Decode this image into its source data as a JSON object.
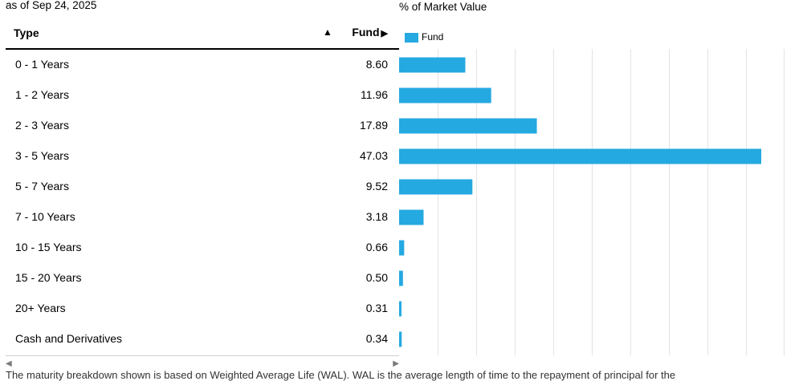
{
  "header": {
    "as_of": "as of Sep 24, 2025",
    "chart_title": "% of Market Value"
  },
  "table": {
    "col_type": "Type",
    "col_fund": "Fund",
    "sort_icon": "sort-ascending-triangle",
    "rows": [
      {
        "type": "0 - 1 Years",
        "value": "8.60"
      },
      {
        "type": "1 - 2 Years",
        "value": "11.96"
      },
      {
        "type": "2 - 3 Years",
        "value": "17.89"
      },
      {
        "type": "3 - 5 Years",
        "value": "47.03"
      },
      {
        "type": "5 - 7 Years",
        "value": "9.52"
      },
      {
        "type": "7 - 10 Years",
        "value": "3.18"
      },
      {
        "type": "10 - 15 Years",
        "value": "0.66"
      },
      {
        "type": "15 - 20 Years",
        "value": "0.50"
      },
      {
        "type": "20+ Years",
        "value": "0.31"
      },
      {
        "type": "Cash and Derivatives",
        "value": "0.34"
      }
    ]
  },
  "legend": {
    "label": "Fund"
  },
  "colors": {
    "bar": "#24a9e1",
    "grid": "#e3e3e3"
  },
  "chart_data": {
    "type": "bar",
    "orientation": "horizontal",
    "categories": [
      "0 - 1 Years",
      "1 - 2 Years",
      "2 - 3 Years",
      "3 - 5 Years",
      "5 - 7 Years",
      "7 - 10 Years",
      "10 - 15 Years",
      "15 - 20 Years",
      "20+ Years",
      "Cash and Derivatives"
    ],
    "series": [
      {
        "name": "Fund",
        "values": [
          8.6,
          11.96,
          17.89,
          47.03,
          9.52,
          3.18,
          0.66,
          0.5,
          0.31,
          0.34
        ]
      }
    ],
    "xlim": [
      0,
      50
    ],
    "grid": true,
    "legend": "top-left"
  },
  "footnote": "The maturity breakdown shown is based on Weighted Average Life (WAL). WAL is the average length of time to the repayment of principal for the"
}
